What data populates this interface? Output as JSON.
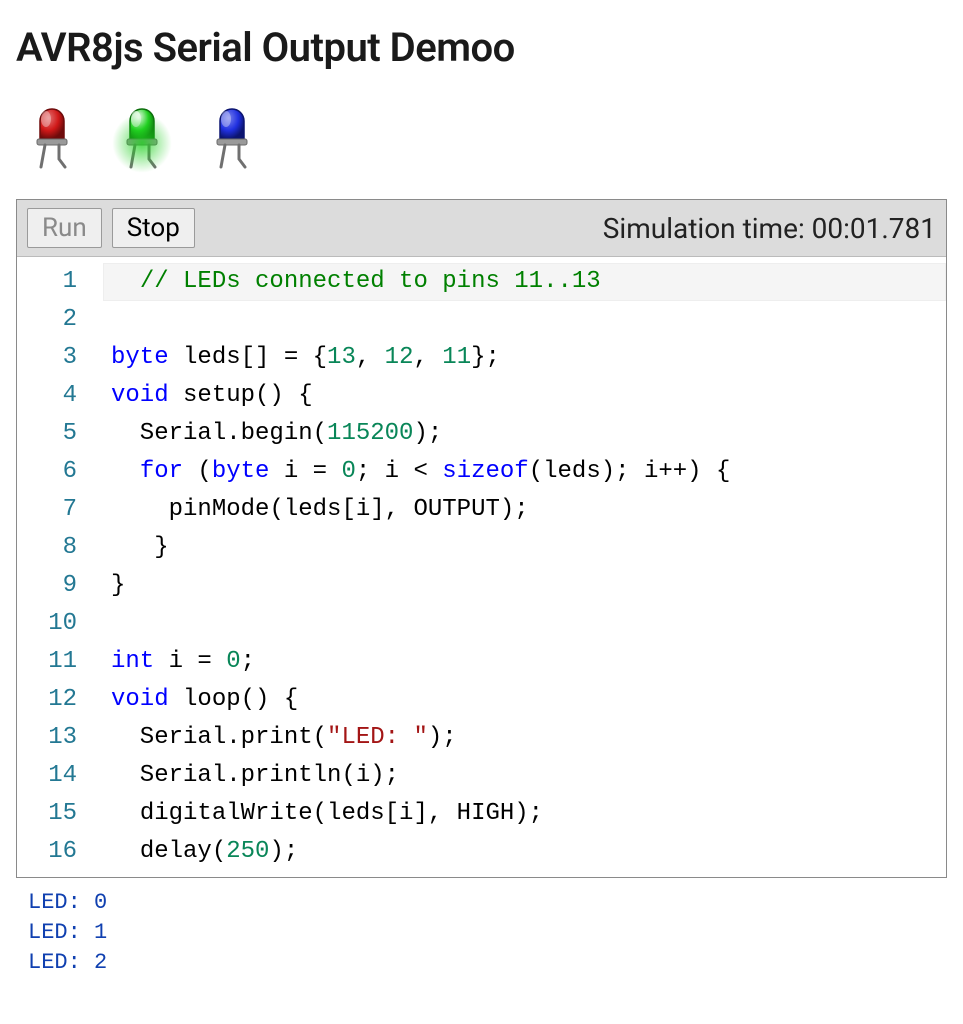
{
  "title": "AVR8js Serial Output Demoo",
  "leds": [
    {
      "name": "led-red",
      "color": "#d01818",
      "dark": "#6e0b0b",
      "on": false
    },
    {
      "name": "led-green",
      "color": "#20d020",
      "dark": "#0b6e0b",
      "on": true
    },
    {
      "name": "led-blue",
      "color": "#2030e0",
      "dark": "#0b1470",
      "on": false
    }
  ],
  "toolbar": {
    "run_label": "Run",
    "run_disabled": true,
    "stop_label": "Stop",
    "stop_disabled": false,
    "status_prefix": "Simulation time: ",
    "status_time": "00:01.781"
  },
  "editor": {
    "syntax_colors": {
      "comment": "#008000",
      "keyword": "#0000ff",
      "number": "#098658",
      "string": "#a31515",
      "default": "#000000",
      "gutter": "#237893",
      "current_line_bg": "#f5f5f5"
    },
    "font_size": 24,
    "line_height": 38,
    "current_line": 1,
    "visible_line_start": 1,
    "visible_line_end": 16,
    "lines": [
      [
        {
          "t": "  ",
          "c": "ident"
        },
        {
          "t": "// LEDs connected to pins 11..13",
          "c": "comment"
        }
      ],
      [],
      [
        {
          "t": "byte",
          "c": "keyword"
        },
        {
          "t": " leds[] = {",
          "c": "ident"
        },
        {
          "t": "13",
          "c": "number"
        },
        {
          "t": ", ",
          "c": "ident"
        },
        {
          "t": "12",
          "c": "number"
        },
        {
          "t": ", ",
          "c": "ident"
        },
        {
          "t": "11",
          "c": "number"
        },
        {
          "t": "};",
          "c": "ident"
        }
      ],
      [
        {
          "t": "void",
          "c": "keyword"
        },
        {
          "t": " ",
          "c": "ident"
        },
        {
          "t": "setup",
          "c": "func"
        },
        {
          "t": "() {",
          "c": "ident"
        }
      ],
      [
        {
          "t": "  Serial.",
          "c": "ident"
        },
        {
          "t": "begin",
          "c": "func"
        },
        {
          "t": "(",
          "c": "ident"
        },
        {
          "t": "115200",
          "c": "number"
        },
        {
          "t": ");",
          "c": "ident"
        }
      ],
      [
        {
          "t": "  ",
          "c": "ident"
        },
        {
          "t": "for",
          "c": "keyword"
        },
        {
          "t": " (",
          "c": "ident"
        },
        {
          "t": "byte",
          "c": "keyword"
        },
        {
          "t": " i = ",
          "c": "ident"
        },
        {
          "t": "0",
          "c": "number"
        },
        {
          "t": "; i < ",
          "c": "ident"
        },
        {
          "t": "sizeof",
          "c": "keyword"
        },
        {
          "t": "(leds); i++) {",
          "c": "ident"
        }
      ],
      [
        {
          "t": "    ",
          "c": "ident"
        },
        {
          "t": "pinMode",
          "c": "func"
        },
        {
          "t": "(leds[i], OUTPUT);",
          "c": "ident"
        }
      ],
      [
        {
          "t": "   }",
          "c": "ident"
        }
      ],
      [
        {
          "t": "}",
          "c": "ident"
        }
      ],
      [],
      [
        {
          "t": "int",
          "c": "keyword"
        },
        {
          "t": " i = ",
          "c": "ident"
        },
        {
          "t": "0",
          "c": "number"
        },
        {
          "t": ";",
          "c": "ident"
        }
      ],
      [
        {
          "t": "void",
          "c": "keyword"
        },
        {
          "t": " ",
          "c": "ident"
        },
        {
          "t": "loop",
          "c": "func"
        },
        {
          "t": "() {",
          "c": "ident"
        }
      ],
      [
        {
          "t": "  Serial.",
          "c": "ident"
        },
        {
          "t": "print",
          "c": "func"
        },
        {
          "t": "(",
          "c": "ident"
        },
        {
          "t": "\"LED: \"",
          "c": "string"
        },
        {
          "t": ");",
          "c": "ident"
        }
      ],
      [
        {
          "t": "  Serial.",
          "c": "ident"
        },
        {
          "t": "println",
          "c": "func"
        },
        {
          "t": "(i);",
          "c": "ident"
        }
      ],
      [
        {
          "t": "  ",
          "c": "ident"
        },
        {
          "t": "digitalWrite",
          "c": "func"
        },
        {
          "t": "(leds[i], HIGH);",
          "c": "ident"
        }
      ],
      [
        {
          "t": "  ",
          "c": "ident"
        },
        {
          "t": "delay",
          "c": "func"
        },
        {
          "t": "(",
          "c": "ident"
        },
        {
          "t": "250",
          "c": "number"
        },
        {
          "t": ");",
          "c": "ident"
        }
      ]
    ]
  },
  "serial_output": [
    "LED: 0",
    "LED: 1",
    "LED: 2"
  ]
}
